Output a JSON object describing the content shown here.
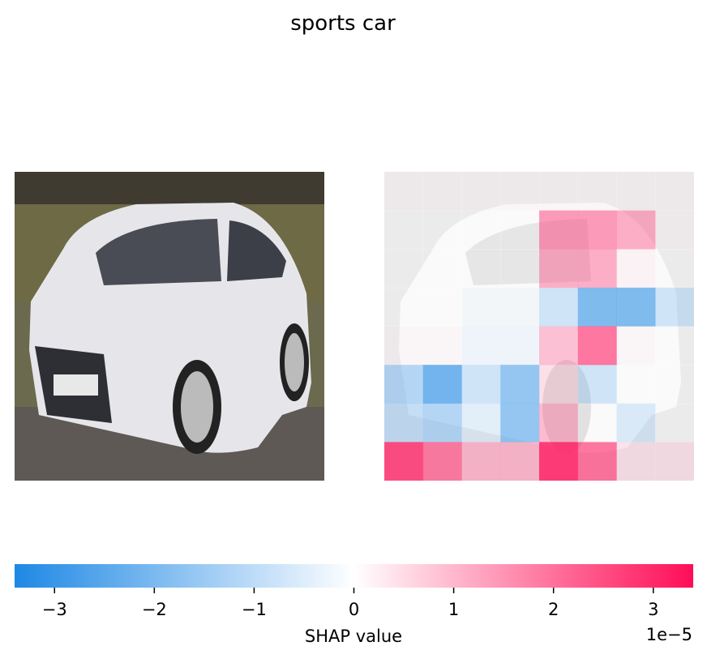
{
  "title": "sports car",
  "chart_data": {
    "type": "heatmap",
    "title": "sports car",
    "grid_rows": 8,
    "grid_cols": 8,
    "values": [
      [
        0.1,
        0.1,
        0.1,
        0.1,
        0.1,
        0.1,
        0.1,
        0.1
      ],
      [
        0.0,
        0.0,
        0.0,
        0.0,
        1.8,
        1.8,
        1.5,
        0.1
      ],
      [
        0.0,
        0.0,
        0.0,
        0.0,
        1.5,
        1.5,
        0.2,
        0.0
      ],
      [
        0.0,
        0.0,
        -0.2,
        -0.2,
        -1.0,
        -2.3,
        -2.3,
        -1.0
      ],
      [
        0.1,
        0.1,
        -0.3,
        -0.3,
        1.2,
        2.3,
        0.1,
        0.0
      ],
      [
        -1.5,
        -2.5,
        -1.0,
        -2.0,
        0.6,
        -1.0,
        0.0,
        0.0
      ],
      [
        -1.2,
        -1.5,
        -0.6,
        -2.0,
        1.3,
        0.0,
        -0.8,
        0.0
      ],
      [
        2.8,
        2.2,
        1.3,
        1.3,
        3.0,
        2.3,
        0.5,
        0.5
      ]
    ],
    "colorbar": {
      "label": "SHAP value",
      "range": [
        -3.4,
        3.4
      ],
      "ticks": [
        -3,
        -2,
        -1,
        0,
        1,
        2,
        3
      ],
      "tick_labels": [
        "−3",
        "−2",
        "−1",
        "0",
        "1",
        "2",
        "3"
      ],
      "exponent_label": "1e−5",
      "negative_color": "#1e88e5",
      "positive_color": "#ff0d57"
    }
  },
  "colors": {
    "negative": "#1e88e5",
    "positive": "#ff0d57"
  }
}
